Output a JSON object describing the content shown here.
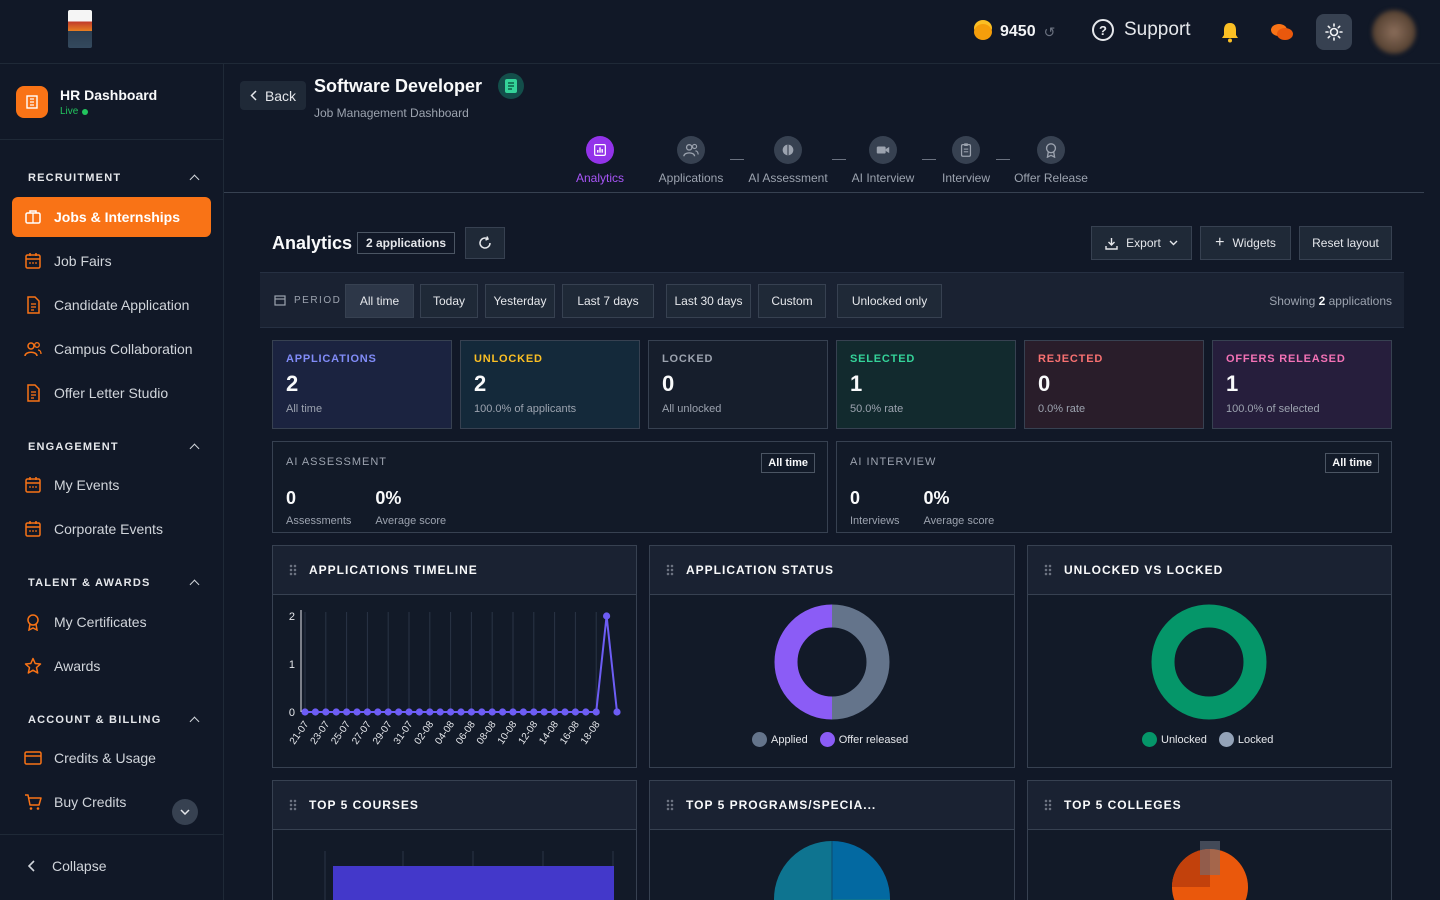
{
  "topbar": {
    "credits": "9450",
    "support_label": "Support"
  },
  "sidebar": {
    "brand_title": "HR Dashboard",
    "brand_status": "Live",
    "sections": [
      {
        "title": "RECRUITMENT",
        "items": [
          {
            "label": "Jobs & Internships",
            "icon": "briefcase-icon",
            "active": true
          },
          {
            "label": "Job Fairs",
            "icon": "calendar-icon"
          },
          {
            "label": "Candidate Application",
            "icon": "document-icon"
          },
          {
            "label": "Campus Collaboration",
            "icon": "users-icon"
          },
          {
            "label": "Offer Letter Studio",
            "icon": "document-icon"
          }
        ]
      },
      {
        "title": "ENGAGEMENT",
        "items": [
          {
            "label": "My Events",
            "icon": "calendar-icon"
          },
          {
            "label": "Corporate Events",
            "icon": "calendar-icon"
          }
        ]
      },
      {
        "title": "TALENT & AWARDS",
        "items": [
          {
            "label": "My Certificates",
            "icon": "award-ribbon-icon"
          },
          {
            "label": "Awards",
            "icon": "star-icon"
          }
        ]
      },
      {
        "title": "ACCOUNT & BILLING",
        "items": [
          {
            "label": "Credits & Usage",
            "icon": "credit-card-icon"
          },
          {
            "label": "Buy Credits",
            "icon": "cart-icon"
          }
        ]
      }
    ],
    "collapse_label": "Collapse"
  },
  "header": {
    "back_label": "Back",
    "title": "Software Developer",
    "subtitle": "Job Management Dashboard"
  },
  "steps": [
    {
      "label": "Analytics",
      "icon": "bar-chart-icon",
      "active": true
    },
    {
      "label": "Applications",
      "icon": "users-icon"
    },
    {
      "label": "AI Assessment",
      "icon": "brain-icon"
    },
    {
      "label": "AI Interview",
      "icon": "video-icon"
    },
    {
      "label": "Interview",
      "icon": "clipboard-icon"
    },
    {
      "label": "Offer Release",
      "icon": "award-ribbon-icon"
    }
  ],
  "analytics": {
    "title": "Analytics",
    "badge": "2 applications",
    "export_label": "Export",
    "widgets_label": "Widgets",
    "reset_label": "Reset layout"
  },
  "period": {
    "label": "PERIOD",
    "options": [
      "All time",
      "Today",
      "Yesterday",
      "Last 7 days",
      "Last 30 days",
      "Custom",
      "Unlocked only"
    ],
    "selected": "All time",
    "showing_prefix": "Showing",
    "showing_count": "2",
    "showing_suffix": "applications"
  },
  "kpis": [
    {
      "label": "APPLICATIONS",
      "value": "2",
      "sub": "All time",
      "color": "#818cf8",
      "bg": "#1b2340"
    },
    {
      "label": "UNLOCKED",
      "value": "2",
      "sub": "100.0% of applicants",
      "color": "#fbbf24",
      "bg": "#14293a"
    },
    {
      "label": "LOCKED",
      "value": "0",
      "sub": "All unlocked",
      "color": "#9ca3af",
      "bg": "#161e2c"
    },
    {
      "label": "SELECTED",
      "value": "1",
      "sub": "50.0% rate",
      "color": "#34d399",
      "bg": "#122a2e"
    },
    {
      "label": "REJECTED",
      "value": "0",
      "sub": "0.0% rate",
      "color": "#f87171",
      "bg": "#291d2a"
    },
    {
      "label": "OFFERS RELEASED",
      "value": "1",
      "sub": "100.0% of selected",
      "color": "#f472b6",
      "bg": "#261e3c"
    }
  ],
  "ai_cards": [
    {
      "label": "AI ASSESSMENT",
      "tag": "All time",
      "stats": [
        {
          "value": "0",
          "label": "Assessments"
        },
        {
          "value": "0%",
          "label": "Average score"
        }
      ]
    },
    {
      "label": "AI INTERVIEW",
      "tag": "All time",
      "stats": [
        {
          "value": "0",
          "label": "Interviews"
        },
        {
          "value": "0%",
          "label": "Average score"
        }
      ]
    }
  ],
  "widgets": {
    "timeline_title": "APPLICATIONS TIMELINE",
    "status_title": "APPLICATION STATUS",
    "unlock_title": "UNLOCKED VS LOCKED",
    "courses_title": "TOP 5 COURSES",
    "programs_title": "TOP 5 PROGRAMS/SPECIA...",
    "colleges_title": "TOP 5 COLLEGES",
    "status_legend": [
      {
        "label": "Applied",
        "color": "#64748b"
      },
      {
        "label": "Offer released",
        "color": "#8b5cf6"
      }
    ],
    "unlock_legend": [
      {
        "label": "Unlocked",
        "color": "#059669"
      },
      {
        "label": "Locked",
        "color": "#94a3b8"
      }
    ]
  },
  "chart_data": [
    {
      "type": "line",
      "title": "APPLICATIONS TIMELINE",
      "x": [
        "21-07",
        "22-07",
        "23-07",
        "24-07",
        "25-07",
        "26-07",
        "27-07",
        "28-07",
        "29-07",
        "30-07",
        "31-07",
        "01-08",
        "02-08",
        "03-08",
        "04-08",
        "05-08",
        "06-08",
        "07-08",
        "08-08",
        "09-08",
        "10-08",
        "11-08",
        "12-08",
        "13-08",
        "14-08",
        "15-08",
        "16-08",
        "17-08",
        "18-08",
        "19-08",
        "20-08"
      ],
      "x_tick_labels": [
        "21-07",
        "23-07",
        "25-07",
        "27-07",
        "29-07",
        "31-07",
        "02-08",
        "04-08",
        "06-08",
        "08-08",
        "10-08",
        "12-08",
        "14-08",
        "16-08",
        "18-08"
      ],
      "y": [
        0,
        0,
        0,
        0,
        0,
        0,
        0,
        0,
        0,
        0,
        0,
        0,
        0,
        0,
        0,
        0,
        0,
        0,
        0,
        0,
        0,
        0,
        0,
        0,
        0,
        0,
        0,
        0,
        0,
        2,
        0
      ],
      "yticks": [
        0,
        1,
        2
      ],
      "ylim": [
        0,
        2
      ],
      "color": "#6d5df5"
    },
    {
      "type": "pie",
      "title": "APPLICATION STATUS",
      "labels": [
        "Applied",
        "Offer released"
      ],
      "values": [
        1,
        1
      ],
      "colors": [
        "#64748b",
        "#8b5cf6"
      ]
    },
    {
      "type": "pie",
      "title": "UNLOCKED VS LOCKED",
      "labels": [
        "Unlocked",
        "Locked"
      ],
      "values": [
        2,
        0
      ],
      "colors": [
        "#059669",
        "#94a3b8"
      ]
    }
  ]
}
